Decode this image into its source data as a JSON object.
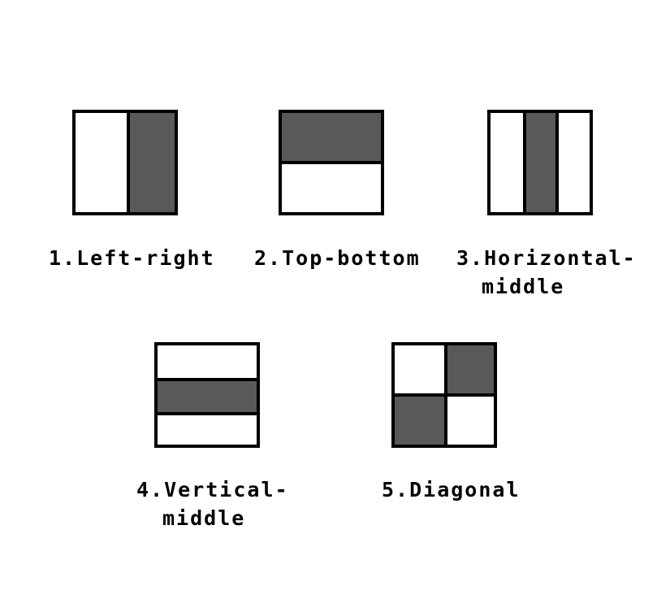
{
  "colors": {
    "shade": "#595959",
    "line": "#000000",
    "background": "#ffffff"
  },
  "patterns": [
    {
      "type": "left-right",
      "label_line1": "1.Left-right",
      "label_line2": ""
    },
    {
      "type": "top-bottom",
      "label_line1": "2.Top-bottom",
      "label_line2": ""
    },
    {
      "type": "horizontal-middle",
      "label_line1": "3.Horizontal-",
      "label_line2": "middle"
    },
    {
      "type": "vertical-middle",
      "label_line1": "4.Vertical-",
      "label_line2": "middle"
    },
    {
      "type": "diagonal",
      "label_line1": "5.Diagonal",
      "label_line2": ""
    }
  ]
}
